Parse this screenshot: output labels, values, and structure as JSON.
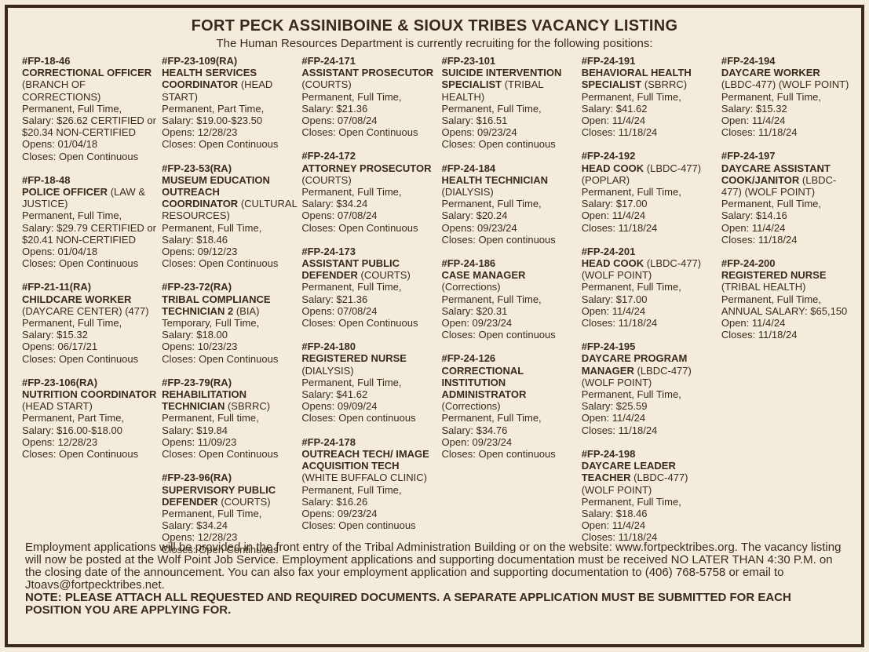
{
  "header": {
    "title": "FORT PECK ASSINIBOINE & SIOUX TRIBES VACANCY LISTING",
    "subtitle": "The Human Resources Department is currently recruiting for the following positions:"
  },
  "columns": [
    {
      "jobs": [
        {
          "id": "#FP-18-46",
          "title": "CORRECTIONAL OFFICER",
          "dept": "(BRANCH OF CORRECTIONS)",
          "details": [
            "Permanent, Full Time,",
            "Salary: $26.62 CERTIFIED or $20.34 NON-CERTIFIED",
            "Opens: 01/04/18",
            "Closes: Open Continuous"
          ]
        },
        {
          "id": "#FP-18-48",
          "title": "POLICE OFFICER",
          "dept": "(LAW & JUSTICE)",
          "details": [
            "Permanent, Full Time,",
            "Salary: $29.79 CERTIFIED or $20.41 NON-CERTIFIED",
            "Opens: 01/04/18",
            "Closes: Open Continuous"
          ]
        },
        {
          "id": "#FP-21-11(RA)",
          "title": "CHILDCARE WORKER",
          "dept": "(DAYCARE CENTER) (477)",
          "details": [
            "Permanent, Full Time,",
            "Salary: $15.32",
            "Opens: 06/17/21",
            "Closes: Open Continuous"
          ]
        },
        {
          "id": "#FP-23-106(RA)",
          "title": "NUTRITION COORDINATOR",
          "dept": "(HEAD START)",
          "details": [
            "Permanent, Part Time,",
            "Salary: $16.00-$18.00",
            "Opens: 12/28/23",
            "Closes: Open Continuous"
          ]
        }
      ]
    },
    {
      "jobs": [
        {
          "id": "#FP-23-109(RA)",
          "title": "HEALTH SERVICES COORDINATOR",
          "dept": "(HEAD START)",
          "details": [
            "Permanent, Part Time,",
            "Salary: $19.00-$23.50",
            "Opens: 12/28/23",
            "Closes: Open Continuous"
          ]
        },
        {
          "id": "#FP-23-53(RA)",
          "title": "MUSEUM EDUCATION OUTREACH COORDINATOR",
          "dept": "(CULTURAL RESOURCES)",
          "details": [
            "Permanent, Full Time,",
            "Salary: $18.46",
            "Opens: 09/12/23",
            "Closes: Open Continuous"
          ]
        },
        {
          "id": "#FP-23-72(RA)",
          "title": "TRIBAL COMPLIANCE TECHNICIAN 2",
          "dept": "(BIA)",
          "details": [
            "Temporary, Full Time,",
            "Salary: $18.00",
            "Opens: 10/23/23",
            "Closes: Open Continuous"
          ]
        },
        {
          "id": "#FP-23-79(RA)",
          "title": "REHABILITATION TECHNICIAN",
          "dept": "(SBRRC)",
          "details": [
            "Permanent, Full time,",
            "Salary: $19.84",
            "Opens: 11/09/23",
            "Closes: Open Continuous"
          ]
        },
        {
          "id": "#FP-23-96(RA)",
          "title": "SUPERVISORY PUBLIC DEFENDER",
          "dept": "(COURTS)",
          "details": [
            "Permanent, Full Time,",
            "Salary: $34.24",
            "Opens: 12/28/23",
            "Closes: Open Continuous"
          ]
        }
      ]
    },
    {
      "jobs": [
        {
          "id": "#FP-24-171",
          "title": "ASSISTANT PROSECUTOR",
          "dept": "(COURTS)",
          "details": [
            "Permanent, Full Time,",
            "Salary: $21.36",
            "Opens: 07/08/24",
            "Closes: Open Continuous"
          ]
        },
        {
          "id": "#FP-24-172",
          "title": "ATTORNEY PROSECUTOR",
          "dept": "(COURTS)",
          "details": [
            "Permanent, Full Time,",
            "Salary: $34.24",
            "Opens: 07/08/24",
            "Closes: Open Continuous"
          ]
        },
        {
          "id": "#FP-24-173",
          "title": "ASSISTANT PUBLIC DEFENDER",
          "dept": "(COURTS)",
          "details": [
            "Permanent, Full Time,",
            "Salary: $21.36",
            "Opens: 07/08/24",
            "Closes: Open Continuous"
          ]
        },
        {
          "id": "#FP-24-180",
          "title": "REGISTERED NURSE",
          "dept": "(DIALYSIS)",
          "details": [
            "Permanent, Full Time,",
            "Salary: $41.62",
            "Opens: 09/09/24",
            "Closes: Open continuous"
          ]
        },
        {
          "id": "#FP-24-178",
          "title": "OUTREACH TECH/ IMAGE ACQUISITION TECH",
          "dept": "(WHITE BUFFALO CLINIC)",
          "details": [
            "Permanent, Full Time,",
            "Salary: $16.26",
            "Opens: 09/23/24",
            "Closes: Open continuous"
          ]
        }
      ]
    },
    {
      "jobs": [
        {
          "id": "#FP-23-101",
          "title": "SUICIDE INTERVENTION SPECIALIST",
          "dept": "(TRIBAL HEALTH)",
          "details": [
            "Permanent, Full Time,",
            "Salary: $16.51",
            "Opens: 09/23/24",
            "Closes: Open continuous"
          ]
        },
        {
          "id": "#FP-24-184",
          "title": "HEALTH TECHNICIAN",
          "dept": "(DIALYSIS)",
          "details": [
            "Permanent, Full Time,",
            "Salary: $20.24",
            "Opens: 09/23/24",
            "Closes: Open continuous"
          ]
        },
        {
          "id": "#FP-24-186",
          "title": "CASE MANAGER",
          "dept": "(Corrections)",
          "details": [
            "Permanent, Full Time,",
            "Salary: $20.31",
            "Open: 09/23/24",
            "Closes: Open continuous"
          ]
        },
        {
          "id": "#FP-24-126",
          "title": "CORRECTIONAL INSTITUTION ADMINISTRATOR",
          "dept": "(Corrections)",
          "details": [
            "Permanent, Full Time,",
            "Salary: $34.76",
            "Open: 09/23/24",
            "Closes: Open continuous"
          ]
        }
      ]
    },
    {
      "jobs": [
        {
          "id": "#FP-24-191",
          "title": "BEHAVIORAL HEALTH SPECIALIST",
          "dept": "(SBRRC)",
          "details": [
            "Permanent, Full Time,",
            "Salary: $41.62",
            "Open: 11/4/24",
            "Closes: 11/18/24"
          ]
        },
        {
          "id": "#FP-24-192",
          "title": "HEAD COOK",
          "dept": "(LBDC-477) (POPLAR)",
          "details": [
            "Permanent, Full Time,",
            "Salary: $17.00",
            "Open: 11/4/24",
            "Closes: 11/18/24"
          ]
        },
        {
          "id": "#FP-24-201",
          "title": "HEAD COOK",
          "dept": "(LBDC-477) (WOLF POINT)",
          "details": [
            "Permanent, Full Time,",
            "Salary: $17.00",
            "Open: 11/4/24",
            "Closes: 11/18/24"
          ]
        },
        {
          "id": "#FP-24-195",
          "title": "DAYCARE PROGRAM MANAGER",
          "dept": "(LBDC-477) (WOLF POINT)",
          "details": [
            "Permanent, Full Time,",
            "Salary: $25.59",
            "Open: 11/4/24",
            "Closes: 11/18/24"
          ]
        },
        {
          "id": "#FP-24-198",
          "title": "DAYCARE LEADER TEACHER",
          "dept": "(LBDC-477) (WOLF POINT)",
          "details": [
            "Permanent, Full Time,",
            "Salary: $18.46",
            "Open: 11/4/24",
            "Closes: 11/18/24"
          ]
        }
      ]
    },
    {
      "jobs": [
        {
          "id": "#FP-24-194",
          "title": "DAYCARE WORKER",
          "dept": "(LBDC-477) (WOLF POINT)",
          "details": [
            "Permanent, Full Time,",
            "Salary: $15.32",
            "Open: 11/4/24",
            "Closes: 11/18/24"
          ]
        },
        {
          "id": "#FP-24-197",
          "title": "DAYCARE ASSISTANT COOK/JANITOR",
          "dept": "(LBDC-477) (WOLF POINT)",
          "details": [
            "Permanent, Full Time,",
            "Salary: $14.16",
            "Open: 11/4/24",
            "Closes: 11/18/24"
          ]
        },
        {
          "id": "#FP-24-200",
          "title": "REGISTERED NURSE",
          "dept": "(TRIBAL HEALTH)",
          "details": [
            "Permanent, Full Time,",
            "ANNUAL SALARY: $65,150",
            "Open: 11/4/24",
            "Closes: 11/18/24"
          ]
        }
      ]
    }
  ],
  "footer": {
    "text": "Employment applications will be provided in the front entry of the Tribal Administration Building or on the website: www.fortpecktribes.org. The vacancy listing will now be posted at the Wolf Point Job Service. Employment applications and supporting documentation must be received NO LATER THAN 4:30 P.M. on the closing date of the announcement. You can also fax your employment application and supporting documentation to (406) 768-5758 or email to Jtoavs@fortpecktribes.net.",
    "note": "NOTE:  PLEASE ATTACH ALL REQUESTED AND REQUIRED DOCUMENTS. A SEPARATE APPLICATION MUST BE SUBMITTED FOR EACH POSITION YOU ARE APPLYING FOR."
  }
}
